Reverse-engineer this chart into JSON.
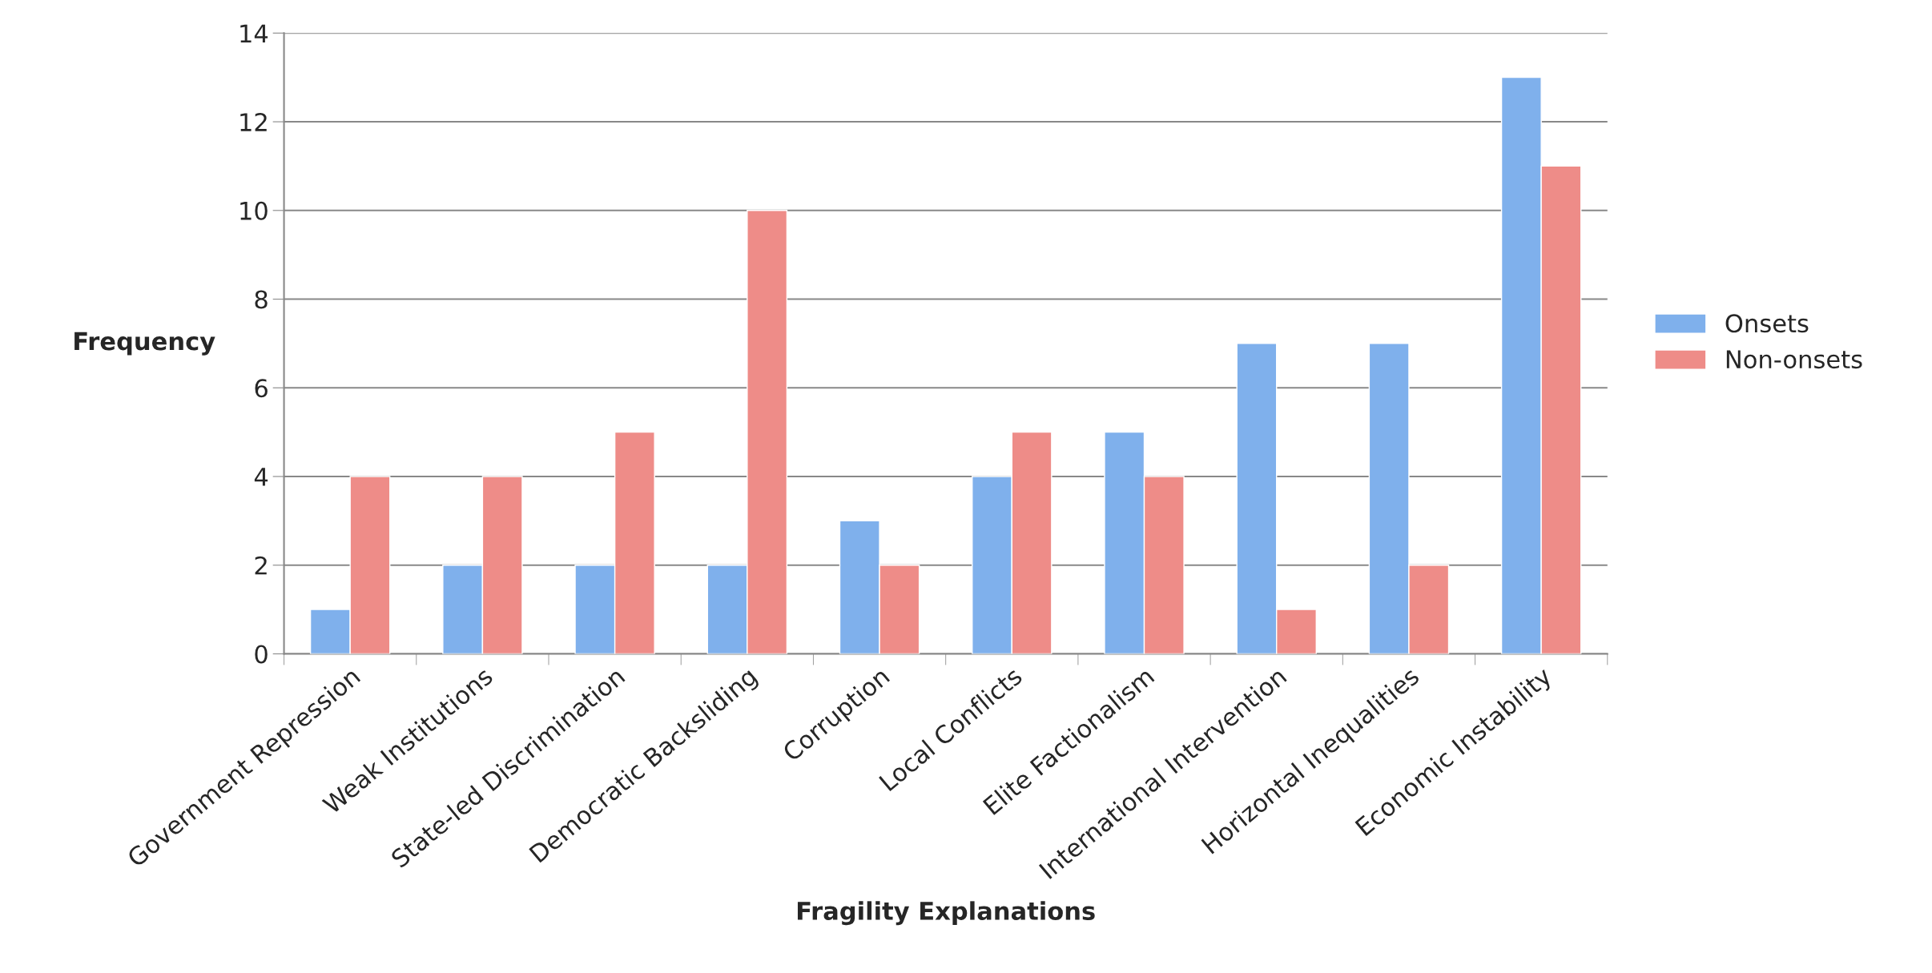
{
  "chart_data": {
    "type": "bar",
    "xlabel": "Fragility Explanations",
    "ylabel": "Frequency",
    "categories": [
      "Government Repression",
      "Weak Institutions",
      "State-led Discrimination",
      "Democratic Backsliding",
      "Corruption",
      "Local Conflicts",
      "Elite Factionalism",
      "International Intervention",
      "Horizontal Inequalities",
      "Economic Instability"
    ],
    "series": [
      {
        "name": "Onsets",
        "color": "#7fb0ec",
        "values": [
          1,
          2,
          2,
          2,
          3,
          4,
          5,
          7,
          7,
          13
        ]
      },
      {
        "name": "Non-onsets",
        "color": "#ee8c88",
        "values": [
          4,
          4,
          5,
          10,
          2,
          5,
          4,
          1,
          2,
          11
        ]
      }
    ],
    "ylim": [
      0,
      14
    ],
    "yticks": [
      0,
      2,
      4,
      6,
      8,
      10,
      12,
      14
    ],
    "grid": "y",
    "legend": "right"
  }
}
